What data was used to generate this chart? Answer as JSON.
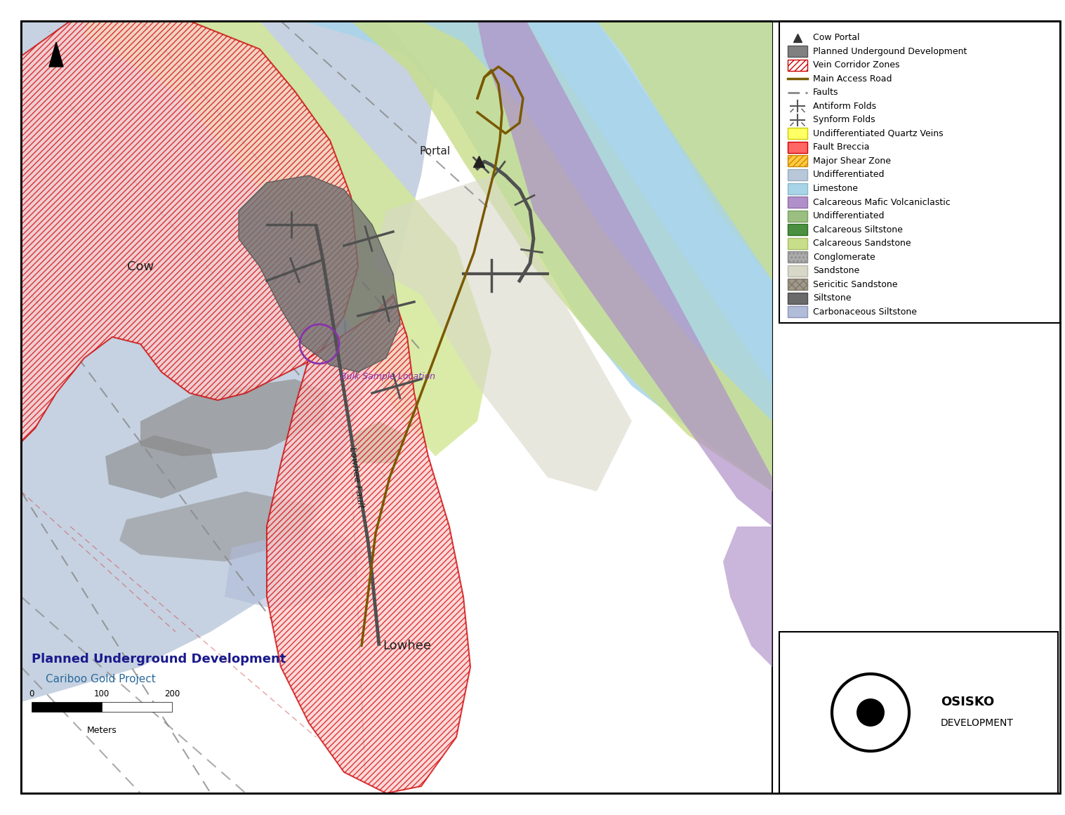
{
  "map_title": "Planned Underground Development",
  "map_subtitle": "Cariboo Gold Project",
  "scale_label": "Meters",
  "legend_items": [
    {
      "label": "Cow Portal",
      "type": "marker",
      "marker": "^",
      "color": "#333333"
    },
    {
      "label": "Planned Undergound Development",
      "type": "patch",
      "facecolor": "#808080",
      "edgecolor": "#555555",
      "hatch": null
    },
    {
      "label": "Vein Corridor Zones",
      "type": "patch",
      "facecolor": "#ffffff",
      "edgecolor": "#cc0000",
      "hatch": "////"
    },
    {
      "label": "Main Access Road",
      "type": "line",
      "color": "#7a5c00",
      "linestyle": "-",
      "linewidth": 2
    },
    {
      "label": "Faults",
      "type": "line",
      "color": "#888888",
      "linestyle": "--",
      "linewidth": 1.5
    },
    {
      "label": "Antiform Folds",
      "type": "special",
      "symbol": "antiform"
    },
    {
      "label": "Synform Folds",
      "type": "special",
      "symbol": "synform"
    },
    {
      "label": "Undifferentiated Quartz Veins",
      "type": "patch",
      "facecolor": "#ffff66",
      "edgecolor": "#cccc00",
      "hatch": null
    },
    {
      "label": "Fault Breccia",
      "type": "patch",
      "facecolor": "#ff6666",
      "edgecolor": "#cc0000",
      "hatch": null
    },
    {
      "label": "Major Shear Zone",
      "type": "patch",
      "facecolor": "#ffcc44",
      "edgecolor": "#cc8800",
      "hatch": "////"
    },
    {
      "label": "Undifferentiated",
      "type": "patch",
      "facecolor": "#b8c8d8",
      "edgecolor": "#9aacbe",
      "hatch": null
    },
    {
      "label": "Limestone",
      "type": "patch",
      "facecolor": "#a8d4e8",
      "edgecolor": "#88b8cc",
      "hatch": null
    },
    {
      "label": "Calcareous Mafic Volcaniclastic",
      "type": "patch",
      "facecolor": "#b090c8",
      "edgecolor": "#9070a8",
      "hatch": null
    },
    {
      "label": "Undifferentiated",
      "type": "patch",
      "facecolor": "#9abf80",
      "edgecolor": "#7a9f60",
      "hatch": null
    },
    {
      "label": "Calcareous Siltstone",
      "type": "patch",
      "facecolor": "#4a9040",
      "edgecolor": "#2a7020",
      "hatch": null
    },
    {
      "label": "Calcareous Sandstone",
      "type": "patch",
      "facecolor": "#c8de8a",
      "edgecolor": "#a8be6a",
      "hatch": null
    },
    {
      "label": "Conglomerate",
      "type": "patch",
      "facecolor": "#aaaaaa",
      "edgecolor": "#888888",
      "hatch": "..."
    },
    {
      "label": "Sandstone",
      "type": "patch",
      "facecolor": "#d8d8c8",
      "edgecolor": "#b8b8a8",
      "hatch": null
    },
    {
      "label": "Sericitic Sandstone",
      "type": "patch",
      "facecolor": "#a09888",
      "edgecolor": "#807868",
      "hatch": "xxx"
    },
    {
      "label": "Siltstone",
      "type": "patch",
      "facecolor": "#6a6a6a",
      "edgecolor": "#4a4a4a",
      "hatch": null
    },
    {
      "label": "Carbonaceous Siltstone",
      "type": "patch",
      "facecolor": "#b0bcd8",
      "edgecolor": "#9098b8",
      "hatch": null
    }
  ],
  "colors": {
    "undifferentiated": "#c0cede",
    "limestone": "#a8d4ea",
    "purple": "#b090c8",
    "light_green": "#c8de8a",
    "yellow_green": "#d4e898",
    "sandstone_light": "#d8d8c8",
    "gray_siltstone": "#909090",
    "vein_red": "#ffaaaa",
    "road_brown": "#7a5c00",
    "tunnel_gray": "#505050",
    "fault_gray": "#888888",
    "bulk_circle": "#8833aa",
    "cow_text": "#222222",
    "portal_text": "#222222",
    "lowhee_text": "#222222",
    "title_blue": "#1a1a8c",
    "subtitle_blue": "#1a5a8c"
  }
}
